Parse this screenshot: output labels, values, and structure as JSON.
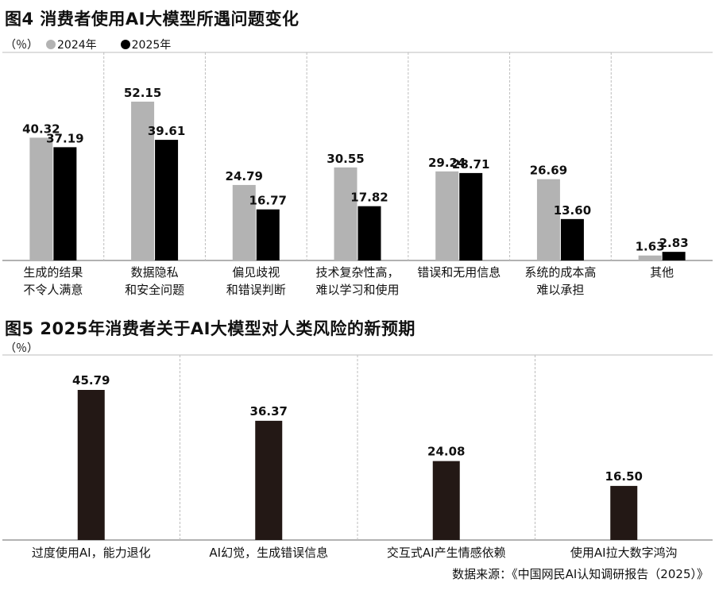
{
  "figure4": {
    "title": "图4 消费者使用AI大模型所遇问题变化",
    "unit": "（％）",
    "legend": [
      "2024年",
      "2025年"
    ]
  },
  "figure5": {
    "title": "图5 2025年消费者关于AI大模型对人类风险的新预期",
    "unit": "（％）"
  },
  "source": "数据来源：《中国网民AI认知调研报告（2025）》",
  "colors": {
    "series_2024": "#b3b3b3",
    "series_2025": "#000000",
    "fig5_bar": "#231815",
    "divider": "#bdbdbd",
    "axis": "#666666"
  },
  "chart_data": [
    {
      "type": "bar",
      "title": "图4 消费者使用AI大模型所遇问题变化",
      "ylabel": "（％）",
      "categories": [
        [
          "生成的结果",
          "不令人满意"
        ],
        [
          "数据隐私",
          "和安全问题"
        ],
        [
          "偏见歧视",
          "和错误判断"
        ],
        [
          "技术复杂性高，",
          "难以学习和使用"
        ],
        [
          "错误和无用信息"
        ],
        [
          "系统的成本高",
          "难以承担"
        ],
        [
          "其他"
        ]
      ],
      "series": [
        {
          "name": "2024年",
          "values": [
            40.32,
            52.15,
            24.79,
            30.55,
            29.24,
            26.69,
            1.63
          ]
        },
        {
          "name": "2025年",
          "values": [
            37.19,
            39.61,
            16.77,
            17.82,
            28.71,
            13.6,
            2.83
          ]
        }
      ],
      "ylim": [
        0,
        55
      ],
      "legend_position": "top-left",
      "grid": false
    },
    {
      "type": "bar",
      "title": "图5 2025年消费者关于AI大模型对人类风险的新预期",
      "ylabel": "（％）",
      "categories": [
        [
          "过度使用AI，能力退化"
        ],
        [
          "AI幻觉，生成错误信息"
        ],
        [
          "交互式AI产生情感依赖"
        ],
        [
          "使用AI拉大数字鸿沟"
        ]
      ],
      "values": [
        45.79,
        36.37,
        24.08,
        16.5
      ],
      "ylim": [
        0,
        50
      ],
      "grid": false
    }
  ]
}
